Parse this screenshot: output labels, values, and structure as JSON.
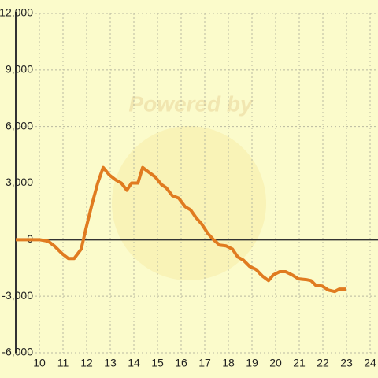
{
  "chart_data": {
    "type": "line",
    "watermark": "Powered by",
    "x": [
      9.0,
      10.0,
      10.37,
      10.63,
      10.97,
      11.23,
      11.47,
      11.77,
      11.97,
      12.23,
      12.47,
      12.7,
      12.97,
      13.23,
      13.47,
      13.7,
      13.9,
      14.17,
      14.37,
      14.63,
      14.9,
      15.17,
      15.37,
      15.63,
      15.9,
      16.17,
      16.4,
      16.63,
      16.87,
      17.13,
      17.37,
      17.63,
      17.9,
      18.17,
      18.4,
      18.63,
      18.9,
      19.17,
      19.43,
      19.7,
      19.9,
      20.17,
      20.43,
      20.7,
      20.97,
      21.3,
      21.5,
      21.7,
      21.97,
      22.23,
      22.5,
      22.7,
      22.97
    ],
    "series": [
      {
        "color": "#e07b20",
        "values": [
          0,
          0,
          -80,
          -330,
          -750,
          -1000,
          -1000,
          -500,
          580,
          1900,
          3000,
          3830,
          3420,
          3170,
          3000,
          2620,
          3000,
          3000,
          3830,
          3580,
          3330,
          2920,
          2750,
          2330,
          2200,
          1750,
          1580,
          1170,
          830,
          330,
          0,
          -290,
          -330,
          -500,
          -920,
          -1080,
          -1420,
          -1580,
          -1920,
          -2170,
          -1870,
          -1700,
          -1700,
          -1870,
          -2080,
          -2120,
          -2170,
          -2420,
          -2460,
          -2670,
          -2750,
          -2620,
          -2620
        ]
      }
    ],
    "xlim": [
      9,
      24.3
    ],
    "xticks": [
      10,
      11,
      12,
      13,
      14,
      15,
      16,
      17,
      18,
      19,
      20,
      21,
      22,
      23,
      24
    ],
    "ylim": [
      -6000,
      12000
    ],
    "yticks": [
      {
        "value": -6000,
        "label": "-6,000"
      },
      {
        "value": -3000,
        "label": "-3,000"
      },
      0,
      {
        "value": 3000,
        "label": "3,000"
      },
      {
        "value": 6000,
        "label": "6,000"
      },
      {
        "value": 9000,
        "label": "9,000"
      },
      {
        "value": 12000,
        "label": "12,000"
      }
    ],
    "grid": true
  }
}
